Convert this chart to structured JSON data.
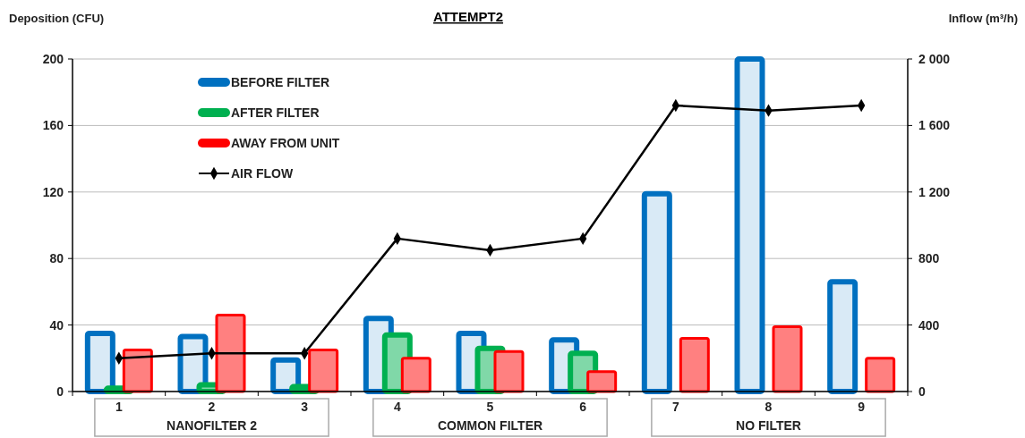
{
  "chart_data": {
    "type": "bar",
    "title": "ATTEMPT2",
    "ylabel": "Deposition (CFU)",
    "y2label": "Inflow (m³/h)",
    "categories": [
      "1",
      "2",
      "3",
      "4",
      "5",
      "6",
      "7",
      "8",
      "9"
    ],
    "series": [
      {
        "name": "BEFORE FILTER",
        "color": "#0070c0",
        "values": [
          35,
          33,
          19,
          44,
          35,
          31,
          119,
          200,
          66
        ]
      },
      {
        "name": "AFTER FILTER",
        "color": "#00b050",
        "values": [
          2,
          4,
          3,
          34,
          26,
          23,
          null,
          null,
          null
        ]
      },
      {
        "name": "AWAY FROM UNIT",
        "color": "#ff0000",
        "values": [
          25,
          46,
          25,
          20,
          24,
          12,
          32,
          39,
          20
        ]
      },
      {
        "name": "AIR FLOW",
        "type": "line",
        "axis": "y2",
        "color": "#000000",
        "marker": "diamond",
        "values": [
          200,
          230,
          230,
          920,
          850,
          920,
          1720,
          1690,
          1720
        ]
      }
    ],
    "ylim": [
      0,
      200
    ],
    "yticks": [
      0,
      40,
      80,
      120,
      160,
      200
    ],
    "y2lim": [
      0,
      2000
    ],
    "y2ticks": [
      0,
      {
        "value": 400,
        "label": "400"
      },
      {
        "value": 800,
        "label": "800"
      },
      {
        "value": 1200,
        "label": "1 200"
      },
      {
        "value": 1600,
        "label": "1 600"
      },
      {
        "value": 2000,
        "label": "2 000"
      }
    ],
    "grid": "y",
    "legend": "top left",
    "annotations": [
      "NANOFILTER 2",
      "COMMON FILTER",
      "NO FILTER"
    ]
  }
}
